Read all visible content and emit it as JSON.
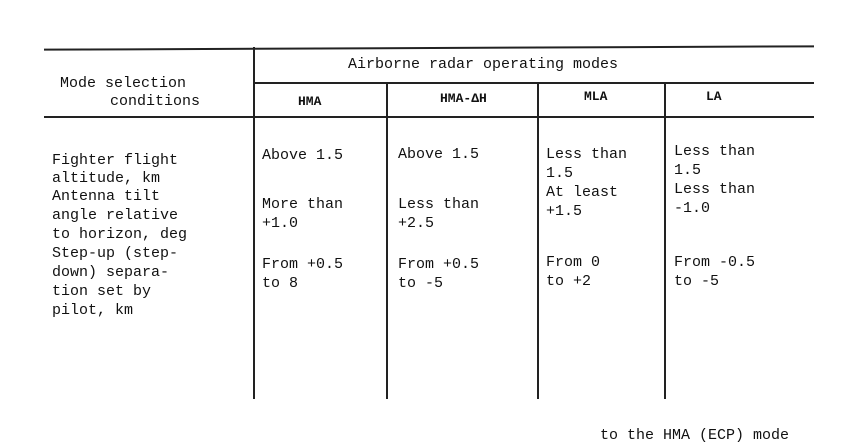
{
  "table": {
    "row_header": [
      "Mode selection",
      "conditions"
    ],
    "group_header": "Airborne radar operating modes",
    "modes": [
      "HMA",
      "HMA-ΔH",
      "MLA",
      "LA"
    ],
    "rows": [
      {
        "condition": [
          "Fighter flight",
          "altitude, km"
        ],
        "values": [
          [
            "Above 1.5"
          ],
          [
            "Above 1.5"
          ],
          [
            "Less than",
            "1.5"
          ],
          [
            "Less than",
            "1.5"
          ]
        ]
      },
      {
        "condition": [
          "Antenna tilt",
          "angle relative",
          "to horizon, deg"
        ],
        "values": [
          [
            "More than",
            "+1.0"
          ],
          [
            "Less than",
            "+2.5"
          ],
          [
            "At least",
            "+1.5"
          ],
          [
            "Less than",
            "-1.0"
          ]
        ]
      },
      {
        "condition": [
          "Step-up (step-",
          "down) separa-",
          "tion set by",
          "pilot, km"
        ],
        "values": [
          [
            "From +0.5",
            "to 8"
          ],
          [
            "From +0.5",
            "to -5"
          ],
          [
            "From 0",
            "to +2"
          ],
          [
            "From -0.5",
            "to -5"
          ]
        ]
      }
    ]
  },
  "footer_partial": "to the HMA (ECP) mode"
}
